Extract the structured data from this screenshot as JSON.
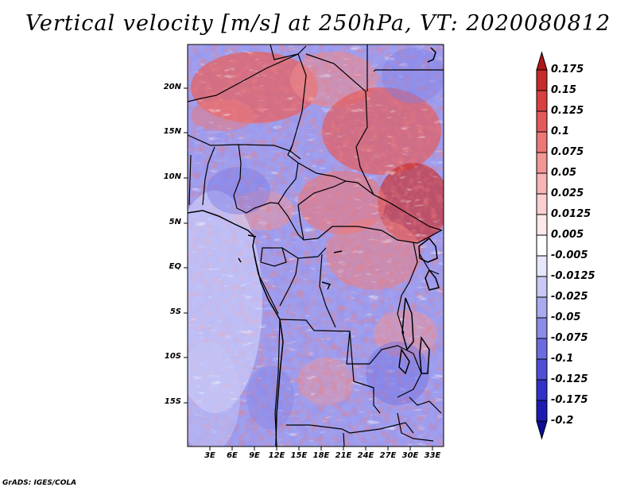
{
  "title": "Vertical velocity [m/s] at 250hPa, VT: 2020080812",
  "credit": "GrADS: IGES/COLA",
  "map": {
    "variable": "Vertical velocity",
    "units": "m/s",
    "level": "250hPa",
    "valid_time": "2020080812",
    "lon_range": [
      0,
      35
    ],
    "lat_range": [
      -20,
      25
    ]
  },
  "lat_ticks": [
    {
      "label": "20N",
      "value": 20
    },
    {
      "label": "15N",
      "value": 15
    },
    {
      "label": "10N",
      "value": 10
    },
    {
      "label": "5N",
      "value": 5
    },
    {
      "label": "EQ",
      "value": 0
    },
    {
      "label": "5S",
      "value": -5
    },
    {
      "label": "10S",
      "value": -10
    },
    {
      "label": "15S",
      "value": -15
    }
  ],
  "lon_ticks": [
    {
      "label": "3E",
      "value": 3
    },
    {
      "label": "6E",
      "value": 6
    },
    {
      "label": "9E",
      "value": 9
    },
    {
      "label": "12E",
      "value": 12
    },
    {
      "label": "15E",
      "value": 15
    },
    {
      "label": "18E",
      "value": 18
    },
    {
      "label": "21E",
      "value": 21
    },
    {
      "label": "24E",
      "value": 24
    },
    {
      "label": "27E",
      "value": 27
    },
    {
      "label": "30E",
      "value": 30
    },
    {
      "label": "33E",
      "value": 33
    }
  ],
  "colorbar": {
    "labels": [
      "0.175",
      "0.15",
      "0.125",
      "0.1",
      "0.075",
      "0.05",
      "0.025",
      "0.0125",
      "0.005",
      "-0.005",
      "-0.0125",
      "-0.025",
      "-0.05",
      "-0.075",
      "-0.1",
      "-0.125",
      "-0.175",
      "-0.2"
    ],
    "colors": [
      "#b01616",
      "#c62a2a",
      "#d84040",
      "#e45a5a",
      "#ec7777",
      "#f29696",
      "#f7b4b4",
      "#fbcfcf",
      "#fde9e9",
      "#ffffff",
      "#e7e7fc",
      "#c9c9f5",
      "#aaaaef",
      "#8b8be8",
      "#6c6ce0",
      "#4e4ed6",
      "#3232c8",
      "#1c1cb0",
      "#0c0c98"
    ]
  }
}
